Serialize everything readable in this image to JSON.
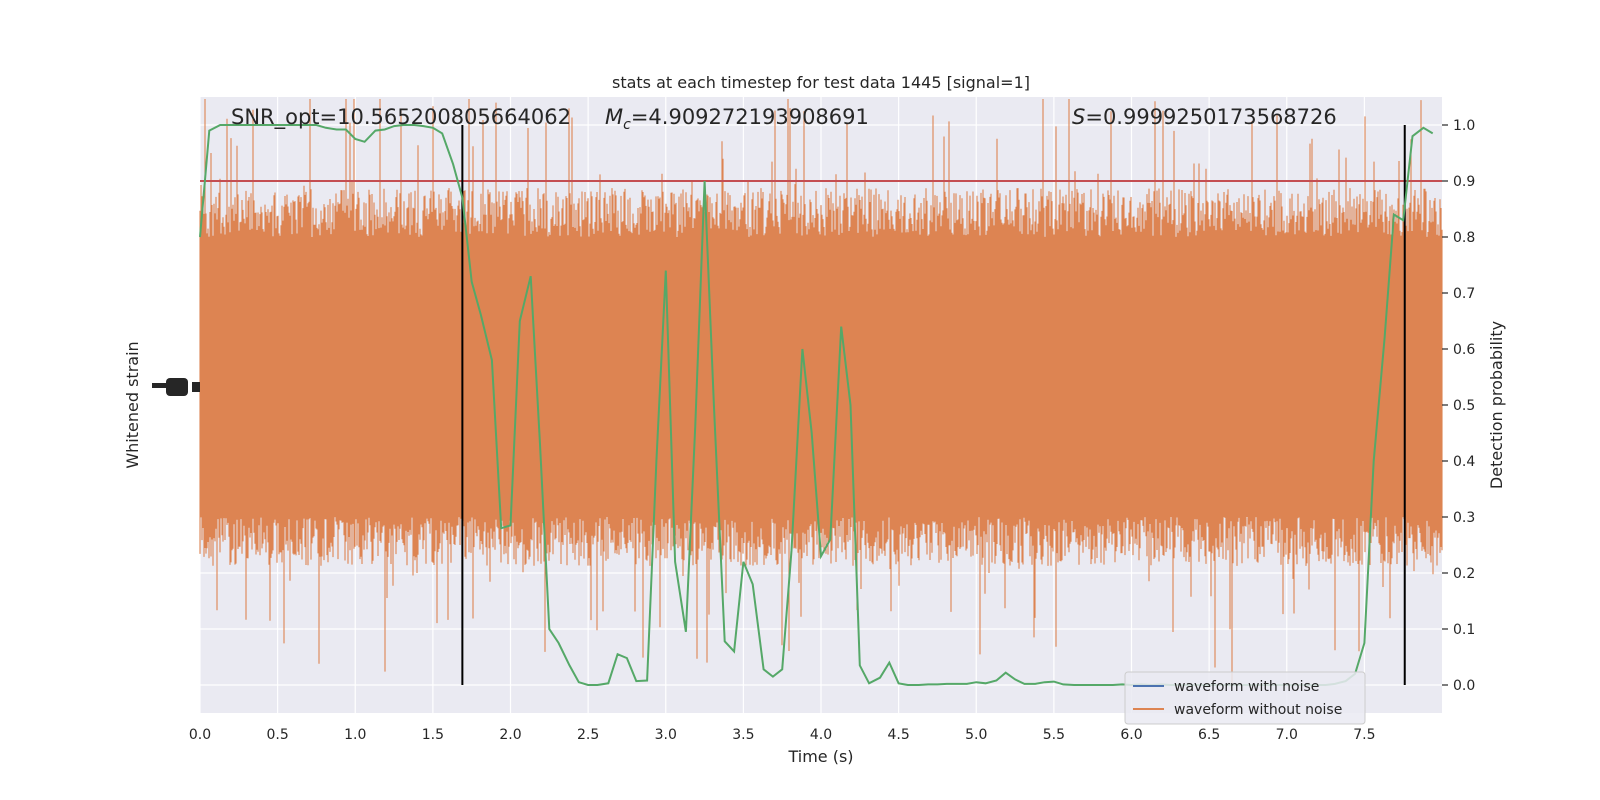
{
  "chart_data": {
    "type": "line",
    "title": "stats at each timestep for test data 1445 [signal=1]",
    "xlabel": "Time (s)",
    "ylabel_left": "Whitened strain",
    "ylabel_right": "Detection probability",
    "xlim": [
      0.0,
      8.0
    ],
    "ylim_right": [
      -0.05,
      1.05
    ],
    "grid": true,
    "x_ticks": [
      "0.0",
      "0.5",
      "1.0",
      "1.5",
      "2.0",
      "2.5",
      "3.0",
      "3.5",
      "4.0",
      "4.5",
      "5.0",
      "5.5",
      "6.0",
      "6.5",
      "7.0",
      "7.5"
    ],
    "y_right_ticks": [
      "0.0",
      "0.1",
      "0.2",
      "0.3",
      "0.4",
      "0.5",
      "0.6",
      "0.7",
      "0.8",
      "0.9",
      "1.0"
    ],
    "annotations": {
      "snr": "SNR_opt=10.565200805664062",
      "mc_symbol": "M",
      "mc_subscript": "c",
      "mc_value": "=4.909272193908691",
      "s_symbol": "S",
      "s_value": "=0.9999250173568726"
    },
    "threshold": 0.9,
    "vertical_lines": [
      1.69,
      7.76
    ],
    "legend": {
      "placement": "lower-right",
      "entries": [
        {
          "label": "waveform with noise",
          "color": "#4c72b0"
        },
        {
          "label": "waveform without noise",
          "color": "#dd8452"
        }
      ]
    },
    "colors": {
      "probability": "#55a868",
      "threshold": "#c44e52",
      "waveform_with_noise": "#4c72b0",
      "waveform_without_noise": "#dd8452",
      "vertical_lines": "#000000",
      "background": "#eaeaf2"
    },
    "series": [
      {
        "role": "detection-probability",
        "x": [
          0.0,
          0.06,
          0.13,
          0.19,
          0.25,
          0.31,
          0.38,
          0.44,
          0.5,
          0.56,
          0.63,
          0.69,
          0.75,
          0.81,
          0.88,
          0.94,
          1.0,
          1.06,
          1.13,
          1.19,
          1.25,
          1.31,
          1.38,
          1.44,
          1.5,
          1.56,
          1.63,
          1.69,
          1.75,
          1.81,
          1.88,
          1.94,
          2.0,
          2.06,
          2.13,
          2.19,
          2.25,
          2.31,
          2.38,
          2.44,
          2.5,
          2.56,
          2.63,
          2.69,
          2.75,
          2.81,
          2.88,
          2.94,
          3.0,
          3.06,
          3.13,
          3.19,
          3.25,
          3.31,
          3.38,
          3.44,
          3.5,
          3.56,
          3.63,
          3.69,
          3.75,
          3.81,
          3.88,
          3.94,
          4.0,
          4.06,
          4.13,
          4.19,
          4.25,
          4.31,
          4.38,
          4.44,
          4.5,
          4.56,
          4.63,
          4.69,
          4.75,
          4.81,
          4.88,
          4.94,
          5.0,
          5.06,
          5.13,
          5.19,
          5.25,
          5.31,
          5.38,
          5.44,
          5.5,
          5.56,
          5.63,
          5.69,
          5.75,
          5.81,
          5.88,
          5.94,
          6.0,
          6.06,
          6.13,
          6.19,
          6.25,
          6.31,
          6.38,
          6.44,
          6.5,
          6.56,
          6.63,
          6.69,
          6.75,
          6.81,
          6.88,
          6.94,
          7.0,
          7.06,
          7.13,
          7.19,
          7.25,
          7.31,
          7.38,
          7.44,
          7.5,
          7.56,
          7.63,
          7.69,
          7.75,
          7.81,
          7.88,
          7.94
        ],
        "y": [
          0.8,
          0.99,
          1.0,
          1.0,
          1.0,
          1.0,
          1.0,
          1.0,
          1.0,
          1.0,
          1.0,
          1.0,
          1.0,
          0.995,
          0.992,
          0.992,
          0.975,
          0.97,
          0.99,
          0.992,
          0.998,
          1.0,
          1.0,
          0.998,
          0.995,
          0.985,
          0.93,
          0.87,
          0.72,
          0.66,
          0.58,
          0.28,
          0.285,
          0.65,
          0.73,
          0.43,
          0.1,
          0.075,
          0.035,
          0.005,
          0.0,
          0.0,
          0.003,
          0.055,
          0.048,
          0.007,
          0.008,
          0.4,
          0.74,
          0.22,
          0.095,
          0.46,
          0.9,
          0.5,
          0.078,
          0.06,
          0.22,
          0.18,
          0.028,
          0.015,
          0.028,
          0.24,
          0.6,
          0.45,
          0.23,
          0.26,
          0.64,
          0.5,
          0.035,
          0.003,
          0.013,
          0.04,
          0.003,
          0.0,
          0.0,
          0.001,
          0.001,
          0.002,
          0.002,
          0.002,
          0.005,
          0.003,
          0.008,
          0.022,
          0.01,
          0.002,
          0.002,
          0.005,
          0.006,
          0.001,
          0.0,
          0.0,
          0.0,
          0.0,
          0.0,
          0.001,
          0.0,
          0.001,
          0.0,
          0.001,
          0.0,
          0.0,
          0.0,
          0.0,
          0.0,
          0.0,
          0.0,
          0.0,
          0.0,
          0.0,
          0.0,
          0.0,
          0.0,
          0.0,
          0.0,
          0.0,
          0.0,
          0.002,
          0.007,
          0.02,
          0.075,
          0.4,
          0.62,
          0.84,
          0.83,
          0.98,
          0.995,
          0.985
        ]
      }
    ]
  }
}
